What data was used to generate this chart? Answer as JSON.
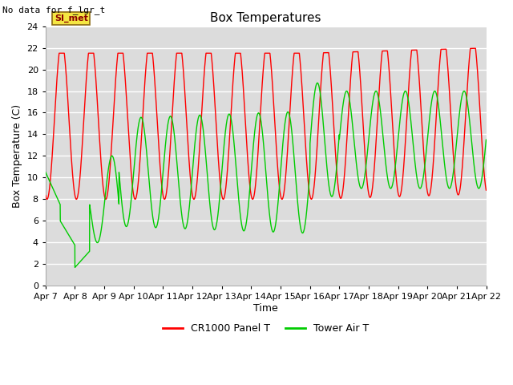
{
  "title": "Box Temperatures",
  "no_data_text": "No data for f_lgr_t",
  "si_met_label": "SI_met",
  "ylabel": "Box Temperature (C)",
  "xlabel": "Time",
  "ylim": [
    0,
    24
  ],
  "yticks": [
    0,
    2,
    4,
    6,
    8,
    10,
    12,
    14,
    16,
    18,
    20,
    22,
    24
  ],
  "background_color": "#ffffff",
  "plot_bg_color": "#dcdcdc",
  "grid_color": "#ffffff",
  "title_fontsize": 11,
  "axis_fontsize": 9,
  "tick_fontsize": 8,
  "legend_colors": [
    "#ff0000",
    "#00cc00"
  ],
  "x_tick_labels": [
    "Apr 7",
    "Apr 8",
    "Apr 9",
    "Apr 10",
    "Apr 11",
    "Apr 12",
    "Apr 13",
    "Apr 14",
    "Apr 15",
    "Apr 16",
    "Apr 17",
    "Apr 18",
    "Apr 19",
    "Apr 20",
    "Apr 21",
    "Apr 22"
  ]
}
